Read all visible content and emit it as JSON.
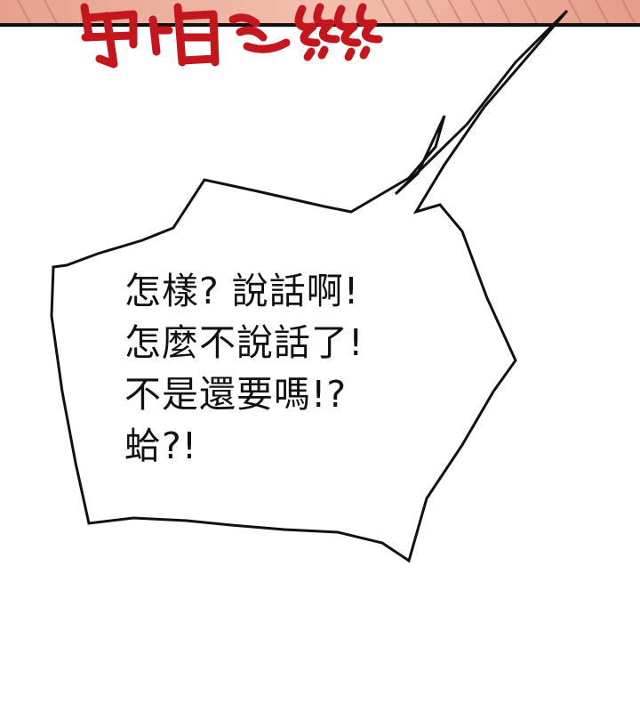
{
  "colors": {
    "panel_skin": "#e9a594",
    "panel_highlight": "#f4c9bb",
    "sfx_red": "#c4161c",
    "panel_border": "#111111",
    "ink": "#111111"
  },
  "top_panel": {
    "sfx_name": "red-sound-effect-lettering"
  },
  "speech_bubble": {
    "lines": [
      "怎樣? 說話啊!",
      "怎麼不說話了!",
      "不是還要嗎!?",
      "蛤?!"
    ]
  }
}
